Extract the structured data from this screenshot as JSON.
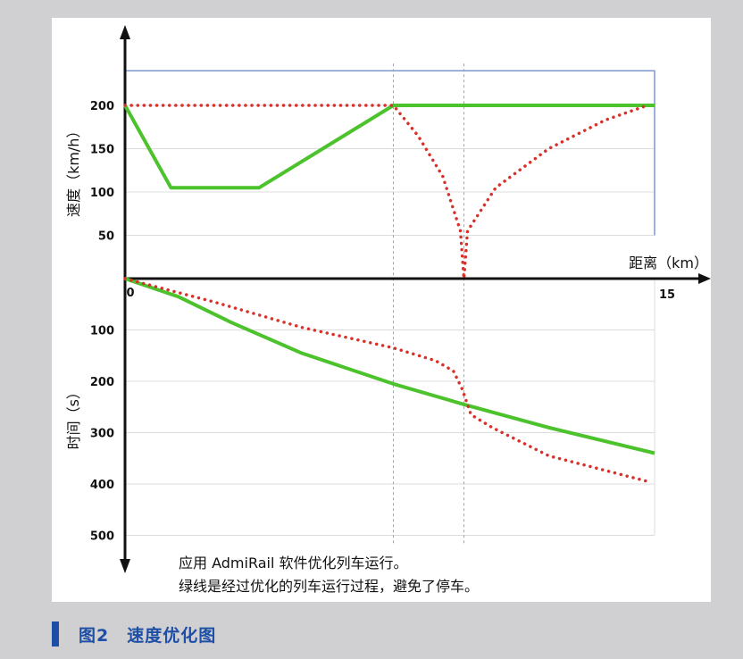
{
  "chart_data": [
    {
      "type": "line",
      "panel": "top",
      "ylabel": "速度（km/h）",
      "xlabel": "距离（km）",
      "ylim": [
        0,
        240
      ],
      "xlim": [
        0,
        15
      ],
      "y_ticks": [
        50,
        100,
        150,
        200
      ],
      "y_tick_labels": [
        "50",
        "100",
        "150",
        "200"
      ],
      "x_tick_labels": [
        "0",
        "15"
      ],
      "grid": true,
      "series": [
        {
          "style": "solid",
          "color": "#4cc22c",
          "x": [
            0,
            1.3,
            3.8,
            7.6,
            15
          ],
          "y": [
            200,
            105,
            105,
            200,
            200
          ]
        },
        {
          "style": "dotted",
          "color": "#d8302a",
          "x": [
            0,
            7.6,
            8.3,
            9.0,
            9.5,
            9.6,
            9.7,
            10.5,
            12.0,
            13.6,
            14.8
          ],
          "y": [
            200,
            200,
            165,
            118,
            55,
            0,
            55,
            105,
            150,
            183,
            200
          ]
        }
      ],
      "reference_x": [
        7.6,
        9.6
      ],
      "speed_limit": 240
    },
    {
      "type": "line",
      "panel": "bottom",
      "ylabel": "时间（s）",
      "ylim": [
        0,
        520
      ],
      "xlim": [
        0,
        15
      ],
      "y_ticks": [
        100,
        200,
        300,
        400,
        500
      ],
      "y_tick_labels": [
        "100",
        "200",
        "300",
        "400",
        "500"
      ],
      "grid": true,
      "series": [
        {
          "style": "solid",
          "color": "#4cc22c",
          "x": [
            0,
            1.5,
            3,
            5,
            7.6,
            9.6,
            12,
            15
          ],
          "y": [
            0,
            35,
            85,
            145,
            205,
            245,
            290,
            340
          ]
        },
        {
          "style": "dotted",
          "color": "#d8302a",
          "x": [
            0,
            2.5,
            5,
            7.6,
            8.8,
            9.3,
            9.55,
            9.8,
            10.4,
            12,
            14.8
          ],
          "y": [
            0,
            45,
            95,
            135,
            160,
            180,
            215,
            265,
            290,
            345,
            395
          ]
        }
      ]
    }
  ],
  "caption": {
    "line1": "应用 AdmiRail 软件优化列车运行。",
    "line2": "绿线是经过优化的列车运行过程，避免了停车。"
  },
  "figure": {
    "label": "图2　速度优化图",
    "accent_color": "#1d4fa6"
  }
}
